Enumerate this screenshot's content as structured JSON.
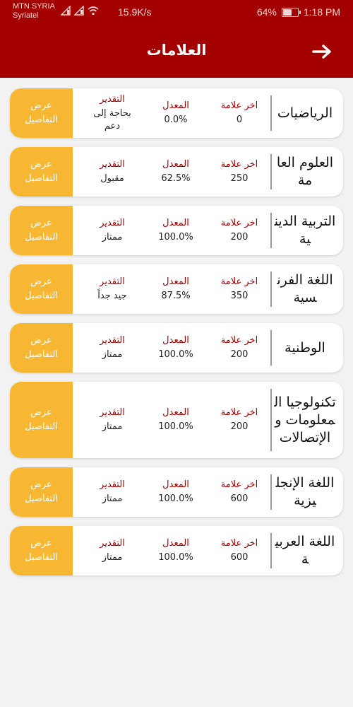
{
  "status_bar": {
    "carrier_line1": "MTN SYRIA",
    "carrier_line2": "Syriatel",
    "net_speed": "15.9K/s",
    "battery_level": 0.64,
    "battery_percent": "64%",
    "time": "1:18 PM",
    "icons": [
      "signal-icon",
      "signal-icon",
      "wifi-icon"
    ]
  },
  "header": {
    "title": "العلامات",
    "back_icon": "arrow-right-icon"
  },
  "colors": {
    "primary": "#a40000",
    "accent": "#f7b733",
    "label": "#a40000",
    "background": "#f2f2f2"
  },
  "columns": {
    "last_mark": "اخر علامة",
    "average": "المعدل",
    "grade": "التقدير"
  },
  "details_label": "عرض التفاصيل",
  "subjects": [
    {
      "name": "الرياضيات",
      "last_mark": "0",
      "average": "0.0%",
      "grade": "بحاجة إلى دعم"
    },
    {
      "name": "العلوم العامة",
      "last_mark": "250",
      "average": "62.5%",
      "grade": "مقبول"
    },
    {
      "name": "التربية الدينية",
      "last_mark": "200",
      "average": "100.0%",
      "grade": "ممتاز"
    },
    {
      "name": "اللغة الفرنسية",
      "last_mark": "350",
      "average": "87.5%",
      "grade": "جيد جداً"
    },
    {
      "name": "الوطنية",
      "last_mark": "200",
      "average": "100.0%",
      "grade": "ممتاز"
    },
    {
      "name": "تكنولوجيا المعلومات والإتصالات",
      "last_mark": "200",
      "average": "100.0%",
      "grade": "ممتاز"
    },
    {
      "name": "اللغة الإنجليزية",
      "last_mark": "600",
      "average": "100.0%",
      "grade": "ممتاز"
    },
    {
      "name": "اللغة العربية",
      "last_mark": "600",
      "average": "100.0%",
      "grade": "ممتاز"
    }
  ]
}
